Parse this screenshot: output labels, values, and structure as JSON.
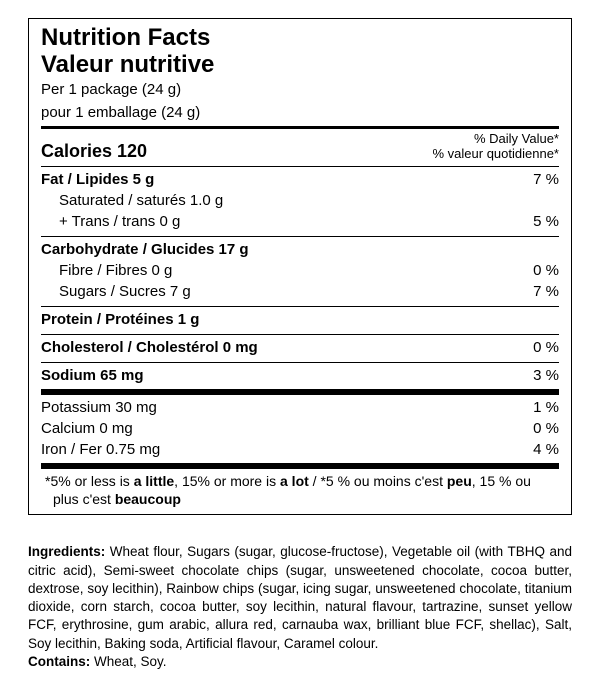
{
  "title_en": "Nutrition Facts",
  "title_fr": "Valeur nutritive",
  "serving_en": "Per 1 package (24 g)",
  "serving_fr": "pour 1 emballage (24 g)",
  "calories_label": "Calories 120",
  "dv_en": "% Daily Value*",
  "dv_fr": "% valeur quotidienne*",
  "rows": {
    "fat": {
      "label": "Fat / Lipides 5 g",
      "pct": "7 %"
    },
    "sat_line1": {
      "label": "Saturated / saturés 1.0 g"
    },
    "sat_line2": {
      "label": "+ Trans / trans 0 g",
      "pct": "5 %"
    },
    "carb": {
      "label": "Carbohydrate / Glucides 17 g"
    },
    "fibre": {
      "label": "Fibre / Fibres 0 g",
      "pct": "0 %"
    },
    "sugars": {
      "label": "Sugars / Sucres 7 g",
      "pct": "7 %"
    },
    "protein": {
      "label": "Protein / Protéines 1 g"
    },
    "chol": {
      "label": "Cholesterol / Cholestérol 0 mg",
      "pct": "0 %"
    },
    "sodium": {
      "label": "Sodium 65 mg",
      "pct": "3 %"
    },
    "potassium": {
      "label": "Potassium 30 mg",
      "pct": "1 %"
    },
    "calcium": {
      "label": "Calcium 0 mg",
      "pct": "0 %"
    },
    "iron": {
      "label": "Iron / Fer 0.75 mg",
      "pct": "4 %"
    }
  },
  "footnote_parts": {
    "p1": "*5% or less is ",
    "b1": "a little",
    "p2": ", 15% or more is ",
    "b2": "a lot",
    "p3": " / *5 % ou moins c'est ",
    "b3": "peu",
    "p4": ", 15 % ou plus c'est ",
    "b4": "beaucoup"
  },
  "ingredients_lead": "Ingredients:",
  "ingredients_body": " Wheat flour, Sugars (sugar, glucose-fructose), Vegetable oil (with TBHQ and citric acid), Semi-sweet chocolate chips (sugar, unsweetened chocolate, cocoa butter, dextrose, soy lecithin), Rainbow chips (sugar, icing sugar, unsweetened chocolate, titanium dioxide, corn starch, cocoa butter, soy lecithin, natural flavour, tartrazine, sunset yellow FCF, erythrosine, gum arabic, allura red, carnauba wax, brilliant blue FCF, shellac), Salt, Soy lecithin, Baking soda, Artificial flavour, Caramel colour.",
  "contains_lead": "Contains:",
  "contains_body": " Wheat, Soy."
}
